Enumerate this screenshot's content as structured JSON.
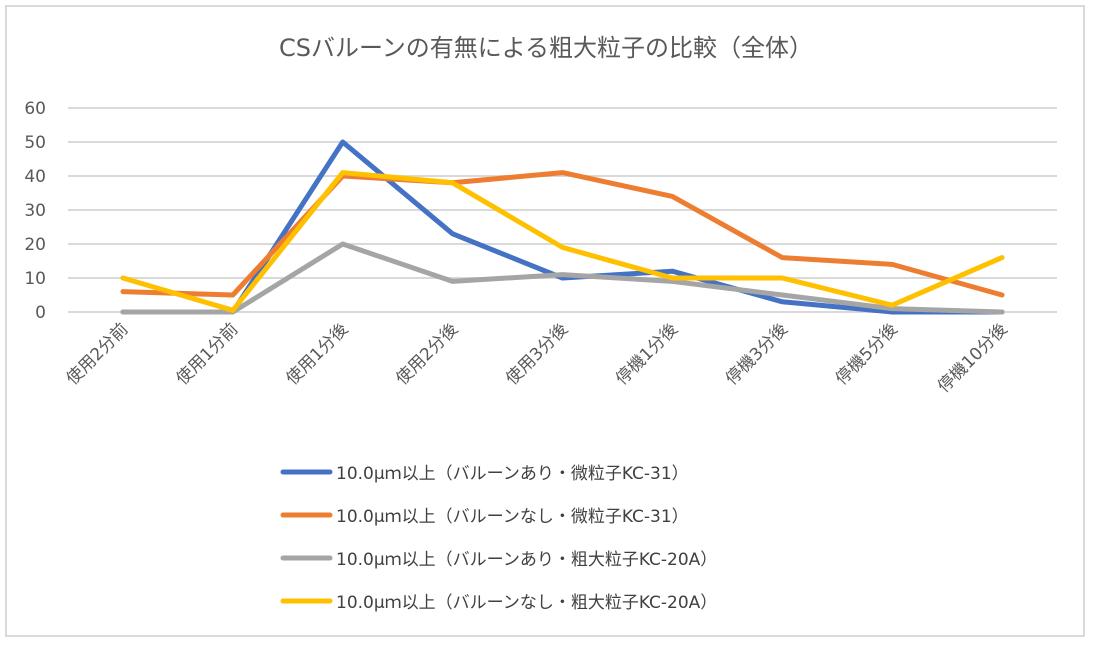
{
  "chart_data": {
    "type": "line",
    "title": "CSバルーンの有無による粗大粒子の比較（全体）",
    "xlabel": "",
    "ylabel": "",
    "ylim": [
      0,
      60
    ],
    "yticks": [
      "0",
      "10",
      "20",
      "30",
      "40",
      "50",
      "60"
    ],
    "grid": true,
    "legend_position": "bottom",
    "categories": [
      "使用2分前",
      "使用1分前",
      "使用1分後",
      "使用2分後",
      "使用3分後",
      "停機1分後",
      "停機3分後",
      "停機5分後",
      "停機10分後"
    ],
    "series": [
      {
        "name": "10.0μｍ以上（バルーンあり・微粒子KC-31）",
        "color": "#4472c4",
        "values": [
          0,
          0,
          50,
          23,
          10,
          12,
          3,
          0,
          0
        ]
      },
      {
        "name": "10.0μｍ以上（バルーンなし・微粒子KC-31）",
        "color": "#ed7d31",
        "values": [
          6,
          5,
          40,
          38,
          41,
          34,
          16,
          14,
          5
        ]
      },
      {
        "name": "10.0μｍ以上（バルーンあり・粗大粒子KC-20A）",
        "color": "#a5a5a5",
        "values": [
          0,
          0,
          20,
          9,
          11,
          9,
          5,
          1,
          0
        ]
      },
      {
        "name": "10.0μｍ以上（バルーンなし・粗大粒子KC-20A）",
        "color": "#ffc000",
        "values": [
          10,
          0.5,
          41,
          38,
          19,
          10,
          10,
          2,
          16
        ]
      }
    ]
  }
}
